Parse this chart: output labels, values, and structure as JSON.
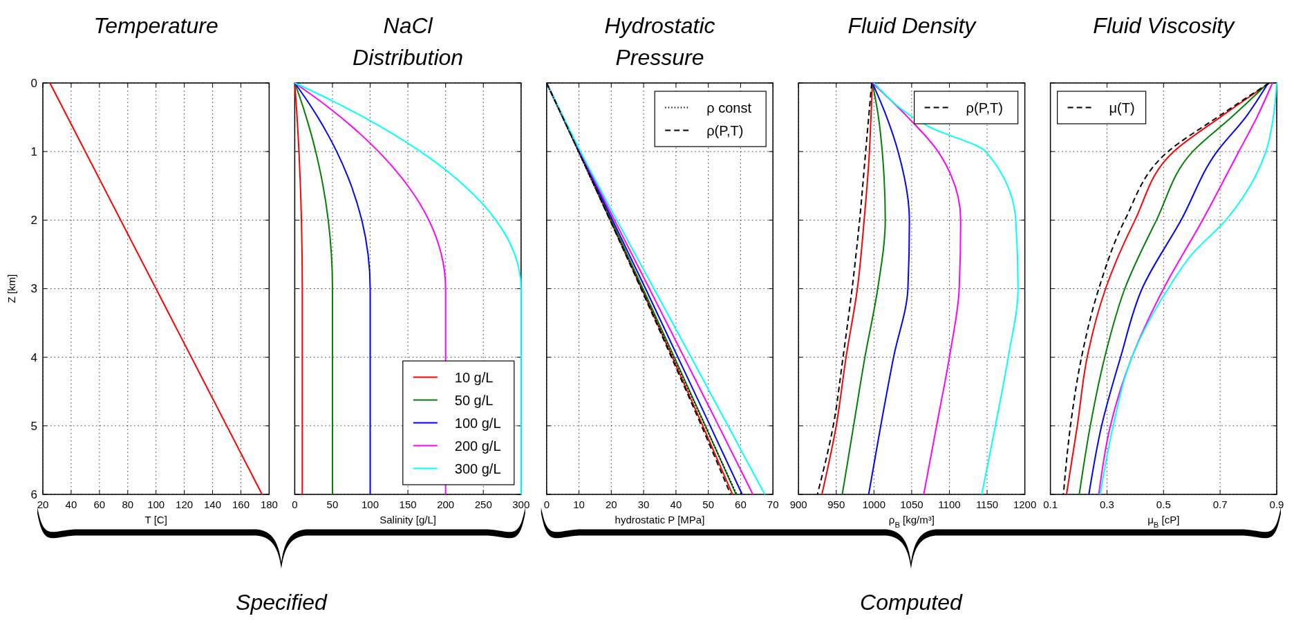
{
  "chart_data": [
    {
      "type": "line",
      "title": "Temperature",
      "xlabel": "T [C]",
      "ylabel": "Z [km]",
      "xlim": [
        20,
        180
      ],
      "xticks": [
        20,
        40,
        60,
        80,
        100,
        120,
        140,
        160,
        180
      ],
      "ylim": [
        6,
        0
      ],
      "yticks": [
        0,
        1,
        2,
        3,
        4,
        5,
        6
      ],
      "grid": true,
      "annotations": [
        "Specified"
      ],
      "series": [
        {
          "color": "#ff0000",
          "x": [
            25,
            175
          ],
          "values": [
            0,
            6
          ]
        }
      ]
    },
    {
      "type": "line",
      "title": "NaCl Distribution",
      "xlabel": "Salinity [g/L]",
      "xlim": [
        0,
        300
      ],
      "xticks": [
        0,
        50,
        100,
        150,
        200,
        250,
        300
      ],
      "ylim": [
        6,
        0
      ],
      "yticks": [
        0,
        1,
        2,
        3,
        4,
        5,
        6
      ],
      "grid": true,
      "legend": "bottom right",
      "tick_labels": "x",
      "series": [
        {
          "name": "10 g/L",
          "color": "#ff0000",
          "x": [
            0,
            1.6,
            3.1,
            4.4,
            5.6,
            7.5,
            8.9,
            9.7,
            10,
            10
          ],
          "values": [
            0,
            0.25,
            0.5,
            0.75,
            1,
            1.5,
            2,
            2.5,
            3,
            6
          ]
        },
        {
          "name": "50 g/L",
          "color": "#008000",
          "x": [
            0,
            8,
            15.3,
            21.9,
            27.8,
            37.5,
            44.4,
            48.6,
            50,
            50
          ],
          "values": [
            0,
            0.25,
            0.5,
            0.75,
            1,
            1.5,
            2,
            2.5,
            3,
            6
          ]
        },
        {
          "name": "100 g/L",
          "color": "#0000ff",
          "x": [
            0,
            16,
            30.6,
            43.8,
            55.6,
            75,
            88.9,
            97.2,
            100,
            100
          ],
          "values": [
            0,
            0.25,
            0.5,
            0.75,
            1,
            1.5,
            2,
            2.5,
            3,
            6
          ]
        },
        {
          "name": "200 g/L",
          "color": "#ff00ff",
          "x": [
            0,
            32,
            61.1,
            87.5,
            111.1,
            150,
            177.8,
            194.4,
            200,
            200
          ],
          "values": [
            0,
            0.25,
            0.5,
            0.75,
            1,
            1.5,
            2,
            2.5,
            3,
            6
          ]
        },
        {
          "name": "300 g/L",
          "color": "#00ffff",
          "x": [
            0,
            48,
            91.7,
            131.3,
            166.7,
            225,
            266.7,
            291.7,
            300,
            300
          ],
          "values": [
            0,
            0.25,
            0.5,
            0.75,
            1,
            1.5,
            2,
            2.5,
            3,
            6
          ]
        }
      ]
    },
    {
      "type": "line",
      "title": "Hydrostatic Pressure",
      "xlabel": "hydrostatic P [MPa]",
      "xlim": [
        0,
        70
      ],
      "xticks": [
        0,
        10,
        20,
        30,
        40,
        50,
        60,
        70
      ],
      "ylim": [
        6,
        0
      ],
      "yticks": [
        0,
        1,
        2,
        3,
        4,
        5,
        6
      ],
      "grid": true,
      "legend": "top right",
      "tick_labels": "x",
      "annotations": [
        "Computed"
      ],
      "series": [
        {
          "color": "#ff0000",
          "x": [
            0,
            9.9,
            19.7,
            29.4,
            38.9,
            48.3,
            57.5
          ],
          "values": [
            0,
            1,
            2,
            3,
            4,
            5,
            6
          ]
        },
        {
          "color": "#008000",
          "x": [
            0,
            10,
            20,
            29.8,
            39.5,
            49.1,
            58.6
          ],
          "values": [
            0,
            1,
            2,
            3,
            4,
            5,
            6
          ]
        },
        {
          "color": "#0000ff",
          "x": [
            0,
            10.1,
            20.4,
            30.6,
            40.6,
            50.6,
            60.5
          ],
          "values": [
            0,
            1,
            2,
            3,
            4,
            5,
            6
          ]
        },
        {
          "color": "#ff00ff",
          "x": [
            0,
            10.3,
            21,
            31.8,
            42.5,
            53.2,
            63.8
          ],
          "values": [
            0,
            1,
            2,
            3,
            4,
            5,
            6
          ]
        },
        {
          "color": "#00ffff",
          "x": [
            0,
            10.5,
            21.7,
            33.2,
            44.7,
            56.1,
            67.5
          ],
          "values": [
            0,
            1,
            2,
            3,
            4,
            5,
            6
          ]
        },
        {
          "name": "ρ const",
          "color": "#000000",
          "line_style": "dotted",
          "x": [
            0,
            9.8,
            19.6,
            29.4,
            39.2,
            49,
            58.8
          ],
          "values": [
            0,
            1,
            2,
            3,
            4,
            5,
            6
          ]
        },
        {
          "name": "ρ(P,T)",
          "color": "#000000",
          "line_style": "dashed",
          "x": [
            0,
            9.9,
            19.6,
            29.2,
            38.6,
            47.9,
            56.9
          ],
          "values": [
            0,
            1,
            2,
            3,
            4,
            5,
            6
          ]
        }
      ]
    },
    {
      "type": "line",
      "title": "Fluid Density",
      "xlabel": "ρ$_{B}$ [kg/m³]",
      "xlim": [
        900,
        1200
      ],
      "xticks": [
        900,
        950,
        1000,
        1050,
        1100,
        1150,
        1200
      ],
      "ylim": [
        6,
        0
      ],
      "yticks": [
        0,
        1,
        2,
        3,
        4,
        5,
        6
      ],
      "grid": true,
      "legend": "top right",
      "tick_labels": "x",
      "series": [
        {
          "color": "#ff0000",
          "x": [
            998,
            996,
            994,
            987,
            978,
            963,
            950,
            931
          ],
          "values": [
            0,
            0.5,
            1,
            2,
            3,
            4,
            5,
            6
          ]
        },
        {
          "color": "#008000",
          "x": [
            998,
            1006,
            1011,
            1015,
            1005,
            988,
            973,
            958
          ],
          "values": [
            0,
            0.5,
            1,
            2,
            3,
            4,
            5,
            6
          ]
        },
        {
          "color": "#0000ff",
          "x": [
            998,
            1017,
            1032,
            1047,
            1045,
            1026,
            1009,
            993
          ],
          "values": [
            0,
            0.5,
            1,
            2,
            3,
            4,
            5,
            6
          ]
        },
        {
          "color": "#ff00ff",
          "x": [
            998,
            1045,
            1085,
            1115,
            1113,
            1100,
            1083,
            1066
          ],
          "values": [
            0,
            0.5,
            1,
            2,
            3,
            4,
            5,
            6
          ]
        },
        {
          "color": "#00ffff",
          "x": [
            1000,
            1075,
            1148,
            1188,
            1191,
            1178,
            1161,
            1143
          ],
          "values": [
            0,
            0.65,
            1,
            2,
            3,
            4,
            5,
            6
          ]
        },
        {
          "name": "ρ(P,T)",
          "color": "#000000",
          "line_style": "dashed",
          "x": [
            997,
            993,
            989,
            981,
            971,
            959,
            946,
            925
          ],
          "values": [
            0,
            0.5,
            1,
            2,
            3,
            4,
            5,
            6
          ]
        }
      ]
    },
    {
      "type": "line",
      "title": "Fluid Viscosity",
      "xlabel": "μ$_{B}$ [cP]",
      "xlim": [
        0.1,
        0.9
      ],
      "xticks": [
        0.1,
        0.3,
        0.5,
        0.7,
        0.9
      ],
      "ylim": [
        6,
        0
      ],
      "yticks": [
        0,
        1,
        2,
        3,
        4,
        5,
        6
      ],
      "grid": true,
      "legend": "top left",
      "tick_labels": "x",
      "series": [
        {
          "color": "#ff0000",
          "x": [
            0.875,
            0.7,
            0.536,
            0.399,
            0.295,
            0.23,
            0.195,
            0.157
          ],
          "values": [
            0,
            0.5,
            1,
            2,
            3,
            4,
            5,
            6
          ]
        },
        {
          "color": "#008000",
          "x": [
            0.87,
            0.74,
            0.603,
            0.475,
            0.363,
            0.292,
            0.241,
            0.202
          ],
          "values": [
            0,
            0.5,
            1,
            2,
            3,
            4,
            5,
            6
          ]
        },
        {
          "color": "#0000ff",
          "x": [
            0.87,
            0.79,
            0.689,
            0.562,
            0.424,
            0.348,
            0.281,
            0.236
          ],
          "values": [
            0,
            0.5,
            1,
            2,
            3,
            4,
            5,
            6
          ]
        },
        {
          "color": "#ff00ff",
          "x": [
            0.885,
            0.83,
            0.766,
            0.638,
            0.5,
            0.388,
            0.312,
            0.271
          ],
          "values": [
            0,
            0.5,
            1,
            2,
            3,
            4,
            5,
            6
          ]
        },
        {
          "color": "#00ffff",
          "x": [
            0.9,
            0.888,
            0.862,
            0.806,
            0.72,
            0.6,
            0.516,
            0.388,
            0.322,
            0.276
          ],
          "values": [
            0,
            0.5,
            1,
            1.5,
            2,
            2.5,
            3,
            4,
            5,
            6
          ]
        },
        {
          "name": "μ(T)",
          "color": "#000000",
          "line_style": "dashed",
          "x": [
            0.873,
            0.69,
            0.516,
            0.363,
            0.271,
            0.21,
            0.171,
            0.146
          ],
          "values": [
            0,
            0.5,
            1,
            2,
            3,
            4,
            5,
            6
          ]
        }
      ]
    }
  ]
}
